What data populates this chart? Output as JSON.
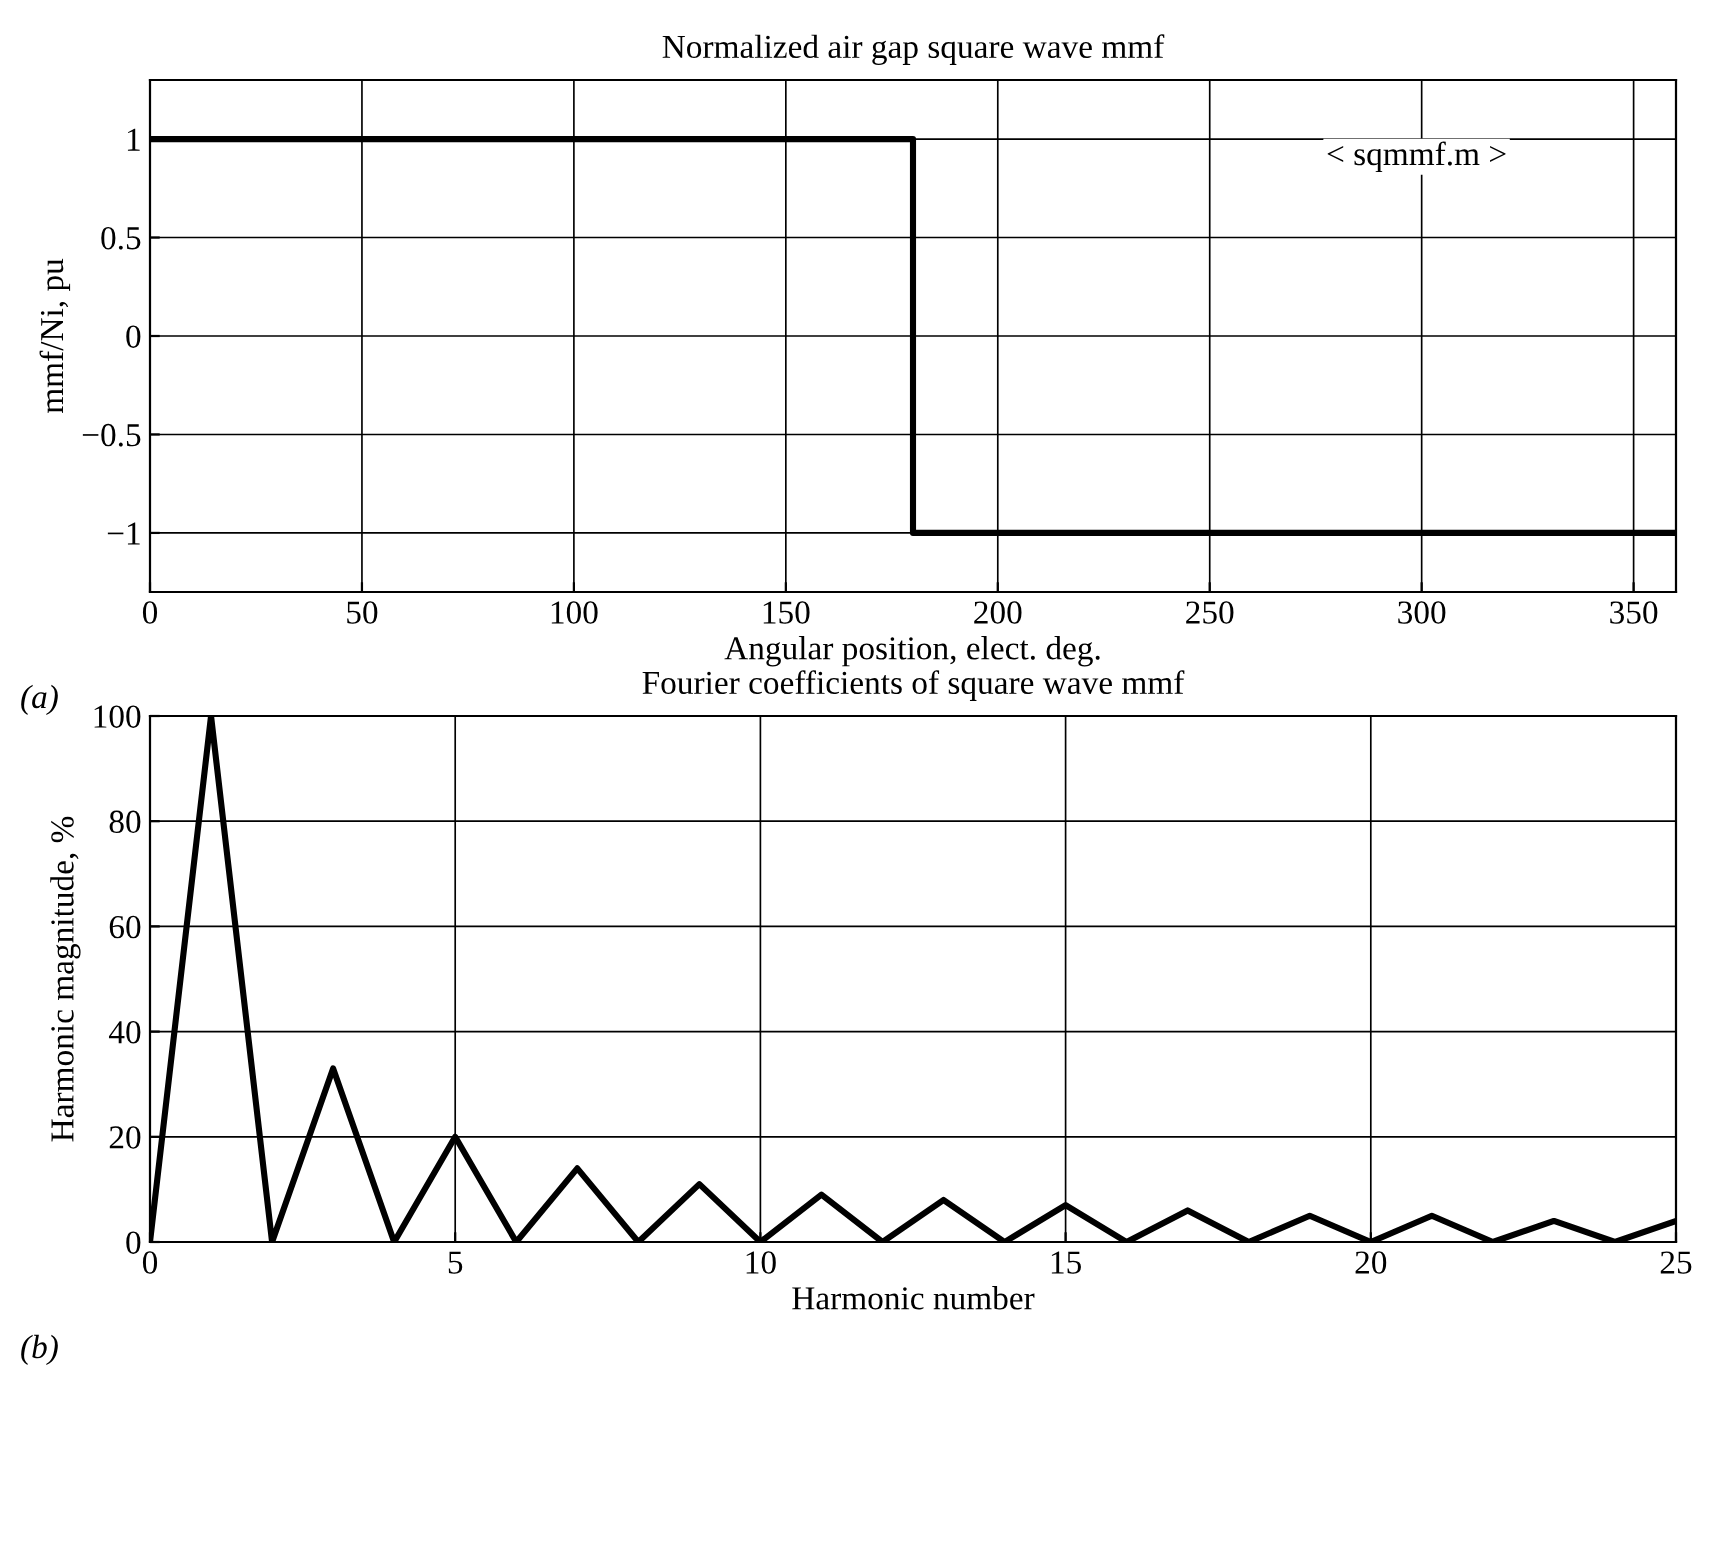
{
  "chart_data": [
    {
      "type": "line",
      "title": "Normalized air gap square wave mmf",
      "xlabel": "Angular position, elect. deg.",
      "ylabel": "mmf/Ni, pu",
      "x": [
        0,
        180,
        180,
        360
      ],
      "values": [
        1,
        1,
        -1,
        -1
      ],
      "color": "#000000",
      "xlim": [
        0,
        360
      ],
      "xticks": [
        0,
        50,
        100,
        150,
        200,
        250,
        300,
        350
      ],
      "ylim": [
        -1.3,
        1.3
      ],
      "yticks": [
        -1,
        -0.5,
        0,
        0.5,
        1
      ],
      "grid": true,
      "annotations": [
        "< sqmmf.m >",
        "(a)"
      ]
    },
    {
      "type": "line",
      "title": "Fourier coefficients of square wave mmf",
      "xlabel": "Harmonic number",
      "ylabel": "Harmonic magnitude, %",
      "x": [
        0,
        1,
        2,
        3,
        4,
        5,
        6,
        7,
        8,
        9,
        10,
        11,
        12,
        13,
        14,
        15,
        16,
        17,
        18,
        19,
        20,
        21,
        22,
        23,
        24,
        25
      ],
      "values": [
        0,
        100,
        0,
        33,
        0,
        20,
        0,
        14,
        0,
        11,
        0,
        9,
        0,
        8,
        0,
        7,
        0,
        6,
        0,
        5,
        0,
        5,
        0,
        4,
        0,
        4
      ],
      "color": "#000000",
      "xlim": [
        0,
        25
      ],
      "xticks": [
        0,
        5,
        10,
        15,
        20,
        25
      ],
      "ylim": [
        0,
        100
      ],
      "yticks": [
        0,
        20,
        40,
        60,
        80,
        100
      ],
      "grid": true,
      "annotations": [
        "(b)"
      ]
    }
  ]
}
